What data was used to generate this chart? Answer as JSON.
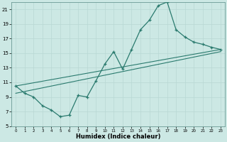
{
  "xlabel": "Humidex (Indice chaleur)",
  "background_color": "#cce8e4",
  "grid_color": "#b8d8d4",
  "line_color": "#2a7a6e",
  "bg_figure": "#cce8e4",
  "curve_x": [
    0,
    1,
    2,
    3,
    4,
    5,
    6,
    7,
    8,
    9,
    10,
    11,
    12,
    13,
    14,
    15,
    16,
    17,
    18,
    19,
    20,
    21,
    22,
    23
  ],
  "curve_y": [
    10.5,
    9.5,
    9.0,
    7.8,
    7.2,
    6.3,
    6.5,
    9.2,
    9.0,
    11.2,
    13.5,
    15.2,
    12.8,
    15.5,
    18.2,
    19.5,
    21.5,
    22.0,
    18.2,
    17.2,
    16.5,
    16.2,
    15.8,
    15.5
  ],
  "line1_x": [
    0,
    23
  ],
  "line1_y": [
    10.5,
    15.5
  ],
  "line2_x": [
    0,
    23
  ],
  "line2_y": [
    9.5,
    15.2
  ],
  "xmin": -0.5,
  "xmax": 23.5,
  "ymin": 5,
  "ymax": 22,
  "yticks": [
    5,
    7,
    9,
    11,
    13,
    15,
    17,
    19,
    21
  ],
  "xticks": [
    0,
    1,
    2,
    3,
    4,
    5,
    6,
    7,
    8,
    9,
    10,
    11,
    12,
    13,
    14,
    15,
    16,
    17,
    18,
    19,
    20,
    21,
    22,
    23
  ]
}
